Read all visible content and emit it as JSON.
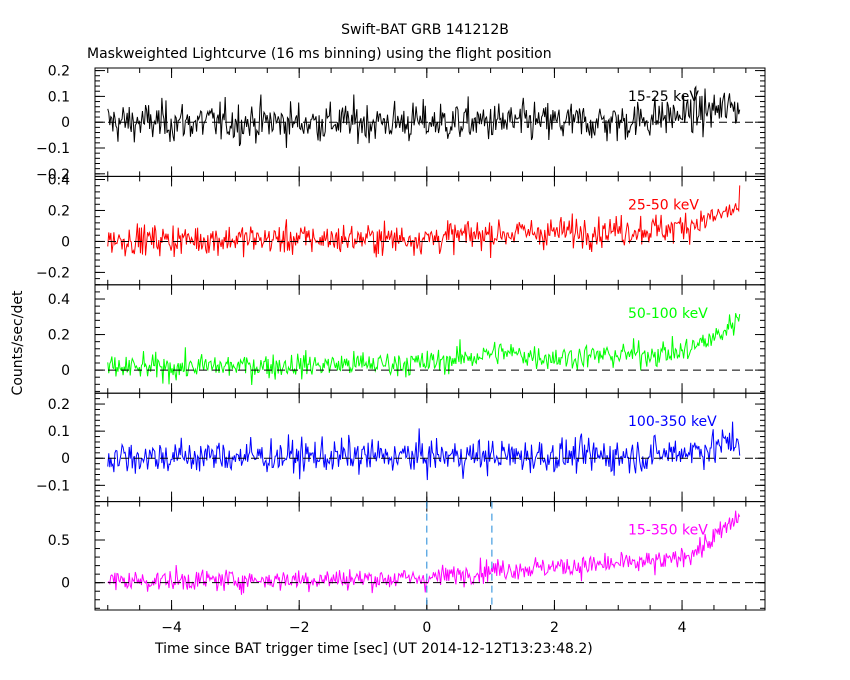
{
  "chart_data": {
    "type": "line",
    "title": "Swift-BAT GRB 141212B",
    "subtitle": "Maskweighted Lightcurve (16 ms binning) using the flight position",
    "xlabel": "Time since BAT trigger time [sec] (UT 2014-12-12T13:23:48.2)",
    "ylabel": "Counts/sec/det",
    "xlim": [
      -5.2,
      5.3
    ],
    "x_ticks": [
      -4,
      -2,
      0,
      2,
      4
    ],
    "bin_sec": 0.016,
    "x_range": [
      -5.0,
      4.9
    ],
    "vertical_markers": [
      0.0,
      1.02
    ],
    "panels": [
      {
        "name": "15-25 keV",
        "color": "#000000",
        "ylim": [
          -0.21,
          0.21
        ],
        "yticks": [
          -0.2,
          -0.1,
          0,
          0.1,
          0.2
        ],
        "ytick_labels": [
          "−0.2",
          "−0.1",
          "0",
          "0.1",
          "0.2"
        ],
        "baseline": 0.0,
        "noise": 0.055,
        "profile": [
          [
            -5,
            0
          ],
          [
            3,
            0
          ],
          [
            4,
            0.03
          ],
          [
            4.9,
            0.06
          ]
        ]
      },
      {
        "name": "25-50 keV",
        "color": "#ff0000",
        "ylim": [
          -0.28,
          0.42
        ],
        "yticks": [
          -0.2,
          0,
          0.2,
          0.4
        ],
        "ytick_labels": [
          "−0.2",
          "0",
          "0.2",
          "0.4"
        ],
        "baseline": 0.0,
        "noise": 0.07,
        "profile": [
          [
            -5,
            0.01
          ],
          [
            0,
            0.02
          ],
          [
            1,
            0.05
          ],
          [
            3.8,
            0.08
          ],
          [
            4.4,
            0.14
          ],
          [
            4.9,
            0.22
          ]
        ]
      },
      {
        "name": "50-100 keV",
        "color": "#00ff00",
        "ylim": [
          -0.13,
          0.48
        ],
        "yticks": [
          0,
          0.2,
          0.4
        ],
        "ytick_labels": [
          "0",
          "0.2",
          "0.4"
        ],
        "baseline": 0.0,
        "noise": 0.05,
        "profile": [
          [
            -5,
            0.01
          ],
          [
            0,
            0.04
          ],
          [
            0.8,
            0.08
          ],
          [
            1.1,
            0.1
          ],
          [
            2.0,
            0.07
          ],
          [
            4.0,
            0.1
          ],
          [
            4.6,
            0.2
          ],
          [
            4.9,
            0.3
          ]
        ]
      },
      {
        "name": "100-350 keV",
        "color": "#0000ff",
        "ylim": [
          -0.16,
          0.24
        ],
        "yticks": [
          -0.1,
          0,
          0.1,
          0.2
        ],
        "ytick_labels": [
          "−0.1",
          "0",
          "0.1",
          "0.2"
        ],
        "baseline": 0.0,
        "noise": 0.045,
        "profile": [
          [
            -5,
            0.005
          ],
          [
            3.5,
            0.01
          ],
          [
            4.5,
            0.04
          ],
          [
            4.9,
            0.07
          ]
        ]
      },
      {
        "name": "15-350 keV",
        "color": "#ff00ff",
        "ylim": [
          -0.32,
          0.95
        ],
        "yticks": [
          0,
          0.5
        ],
        "ytick_labels": [
          "0",
          "0.5"
        ],
        "baseline": 0.0,
        "noise": 0.09,
        "profile": [
          [
            -5,
            0.02
          ],
          [
            0,
            0.05
          ],
          [
            1,
            0.15
          ],
          [
            2.5,
            0.2
          ],
          [
            3.8,
            0.25
          ],
          [
            4.3,
            0.4
          ],
          [
            4.9,
            0.78
          ]
        ]
      }
    ]
  }
}
